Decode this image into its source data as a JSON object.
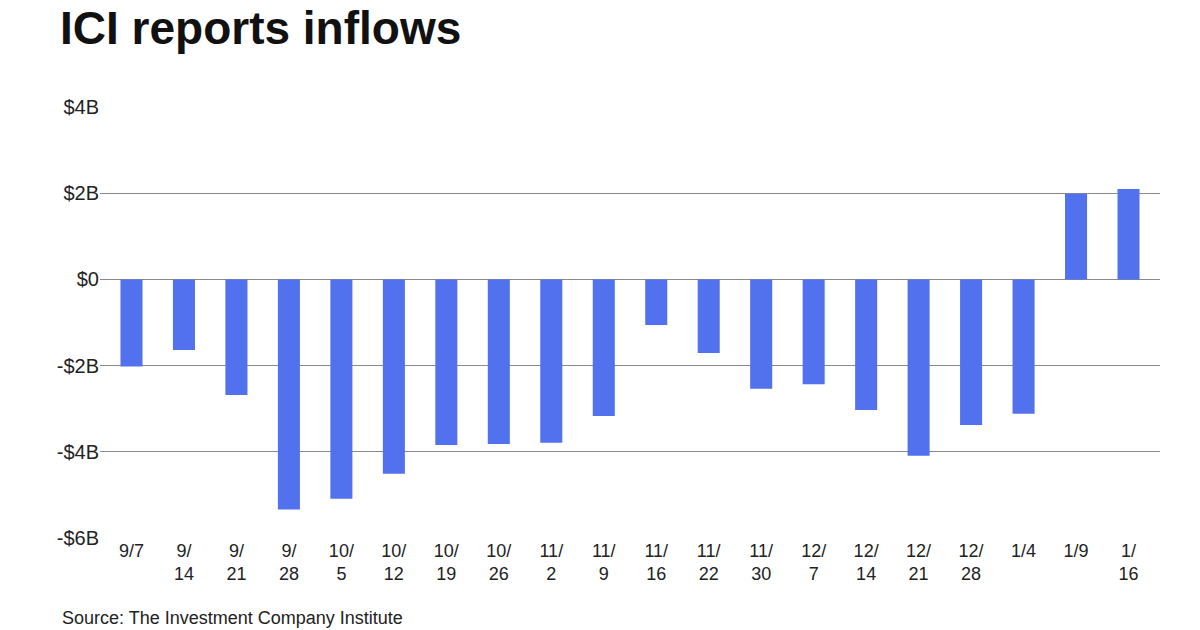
{
  "chart_data": {
    "type": "bar",
    "title": "ICI reports inflows",
    "source": "Source: The Investment Company Institute",
    "categories": [
      "9/7",
      "9/14",
      "9/21",
      "9/28",
      "10/5",
      "10/12",
      "10/19",
      "10/26",
      "11/2",
      "11/9",
      "11/16",
      "11/22",
      "11/30",
      "12/7",
      "12/14",
      "12/21",
      "12/28",
      "1/4",
      "1/9",
      "1/16"
    ],
    "values": [
      -2.02,
      -1.64,
      -2.68,
      -5.34,
      -5.09,
      -4.51,
      -3.84,
      -3.82,
      -3.79,
      -3.17,
      -1.06,
      -1.71,
      -2.54,
      -2.43,
      -3.03,
      -4.09,
      -3.38,
      -3.12,
      1.99,
      2.1
    ],
    "color": "#5271ee",
    "ylim": [
      -6,
      4
    ],
    "yticks": [
      {
        "value": -6,
        "label": "-$6B"
      },
      {
        "value": -4,
        "label": "-$4B"
      },
      {
        "value": -2,
        "label": "-$2B"
      },
      {
        "value": 0,
        "label": "$0"
      },
      {
        "value": 2,
        "label": "$2B"
      },
      {
        "value": 4,
        "label": "$4B"
      }
    ],
    "grid": true
  }
}
